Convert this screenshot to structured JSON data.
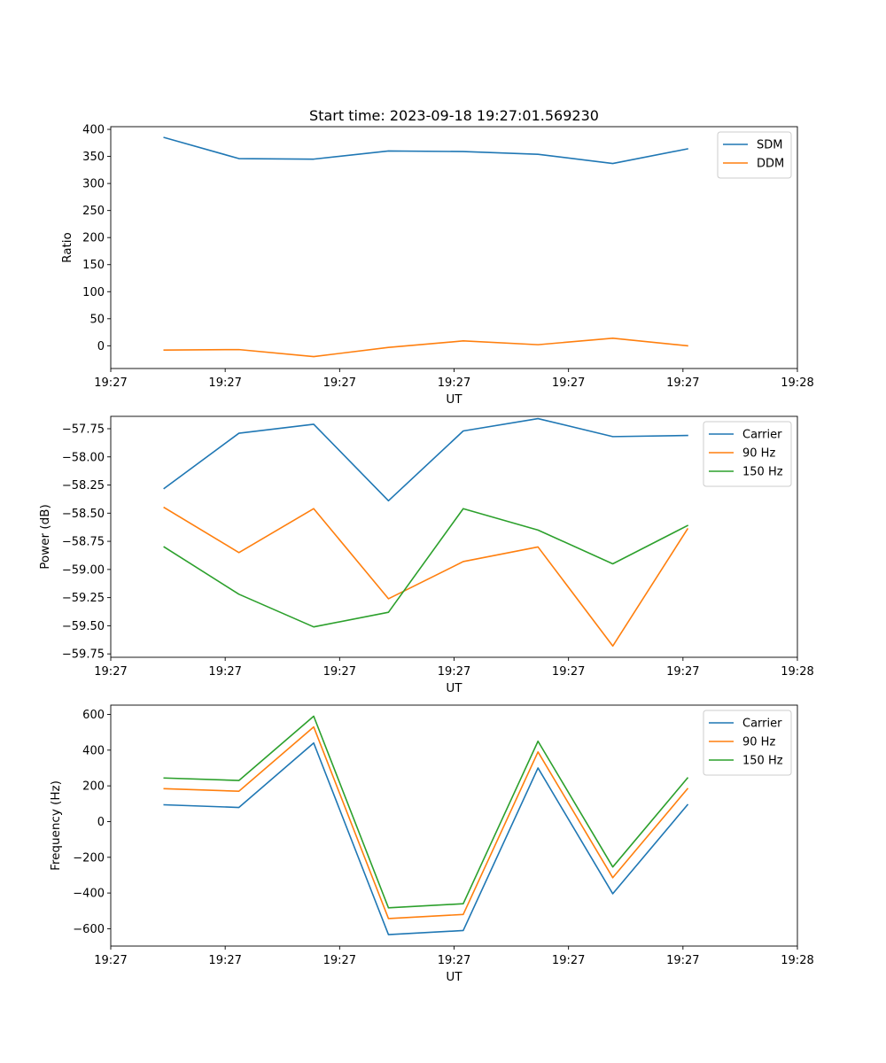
{
  "chart_data": [
    {
      "type": "line",
      "title": "Start time: 2023-09-18 19:27:01.569230",
      "xlabel": "UT",
      "ylabel": "Ratio",
      "xlim": [
        0,
        9
      ],
      "ylim": [
        -42,
        405
      ],
      "xticks": [
        0.0,
        1.5,
        3.0,
        4.5,
        6.0,
        7.5,
        9.0
      ],
      "xtick_labels": [
        "19:27",
        "19:27",
        "19:27",
        "19:27",
        "19:27",
        "19:27",
        "19:28"
      ],
      "yticks": [
        0,
        50,
        100,
        150,
        200,
        250,
        300,
        350,
        400
      ],
      "ytick_labels": [
        "0",
        "50",
        "100",
        "150",
        "200",
        "250",
        "300",
        "350",
        "400"
      ],
      "x": [
        0.7,
        1.68,
        2.66,
        3.64,
        4.62,
        5.6,
        6.58,
        7.56
      ],
      "series": [
        {
          "name": "SDM",
          "color": "#1f77b4",
          "values": [
            385,
            346,
            345,
            360,
            359,
            354,
            337,
            364
          ]
        },
        {
          "name": "DDM",
          "color": "#ff7f0e",
          "values": [
            -8,
            -7,
            -20,
            -3,
            9,
            2,
            14,
            0
          ]
        }
      ],
      "legend": "top-right"
    },
    {
      "type": "line",
      "title": "",
      "xlabel": "UT",
      "ylabel": "Power (dB)",
      "xlim": [
        0,
        9
      ],
      "ylim": [
        -59.78,
        -57.64
      ],
      "xticks": [
        0.0,
        1.5,
        3.0,
        4.5,
        6.0,
        7.5,
        9.0
      ],
      "xtick_labels": [
        "19:27",
        "19:27",
        "19:27",
        "19:27",
        "19:27",
        "19:27",
        "19:28"
      ],
      "yticks": [
        -59.75,
        -59.5,
        -59.25,
        -59.0,
        -58.75,
        -58.5,
        -58.25,
        -58.0,
        -57.75
      ],
      "ytick_labels": [
        "−59.75",
        "−59.50",
        "−59.25",
        "−59.00",
        "−58.75",
        "−58.50",
        "−58.25",
        "−58.00",
        "−57.75"
      ],
      "x": [
        0.7,
        1.68,
        2.66,
        3.64,
        4.62,
        5.6,
        6.58,
        7.56
      ],
      "series": [
        {
          "name": "Carrier",
          "color": "#1f77b4",
          "values": [
            -58.28,
            -57.79,
            -57.71,
            -58.39,
            -57.77,
            -57.66,
            -57.82,
            -57.81
          ]
        },
        {
          "name": "90 Hz",
          "color": "#ff7f0e",
          "values": [
            -58.45,
            -58.85,
            -58.46,
            -59.26,
            -58.93,
            -58.8,
            -59.68,
            -58.64
          ]
        },
        {
          "name": "150 Hz",
          "color": "#2ca02c",
          "values": [
            -58.8,
            -59.22,
            -59.51,
            -59.38,
            -58.46,
            -58.65,
            -58.95,
            -58.61
          ]
        }
      ],
      "legend": "top-right"
    },
    {
      "type": "line",
      "title": "",
      "xlabel": "UT",
      "ylabel": "Frequency (Hz)",
      "xlim": [
        0,
        9
      ],
      "ylim": [
        -697,
        652
      ],
      "xticks": [
        0.0,
        1.5,
        3.0,
        4.5,
        6.0,
        7.5,
        9.0
      ],
      "xtick_labels": [
        "19:27",
        "19:27",
        "19:27",
        "19:27",
        "19:27",
        "19:27",
        "19:28"
      ],
      "yticks": [
        -600,
        -400,
        -200,
        0,
        200,
        400,
        600
      ],
      "ytick_labels": [
        "−600",
        "−400",
        "−200",
        "0",
        "200",
        "400",
        "600"
      ],
      "x": [
        0.7,
        1.68,
        2.66,
        3.64,
        4.62,
        5.6,
        6.58,
        7.56
      ],
      "series": [
        {
          "name": "Carrier",
          "color": "#1f77b4",
          "values": [
            94,
            79,
            440,
            -633,
            -610,
            300,
            -404,
            94
          ]
        },
        {
          "name": "90 Hz",
          "color": "#ff7f0e",
          "values": [
            184,
            170,
            530,
            -543,
            -520,
            390,
            -314,
            184
          ]
        },
        {
          "name": "150 Hz",
          "color": "#2ca02c",
          "values": [
            244,
            230,
            590,
            -483,
            -460,
            450,
            -254,
            244
          ]
        }
      ],
      "legend": "top-right"
    }
  ]
}
